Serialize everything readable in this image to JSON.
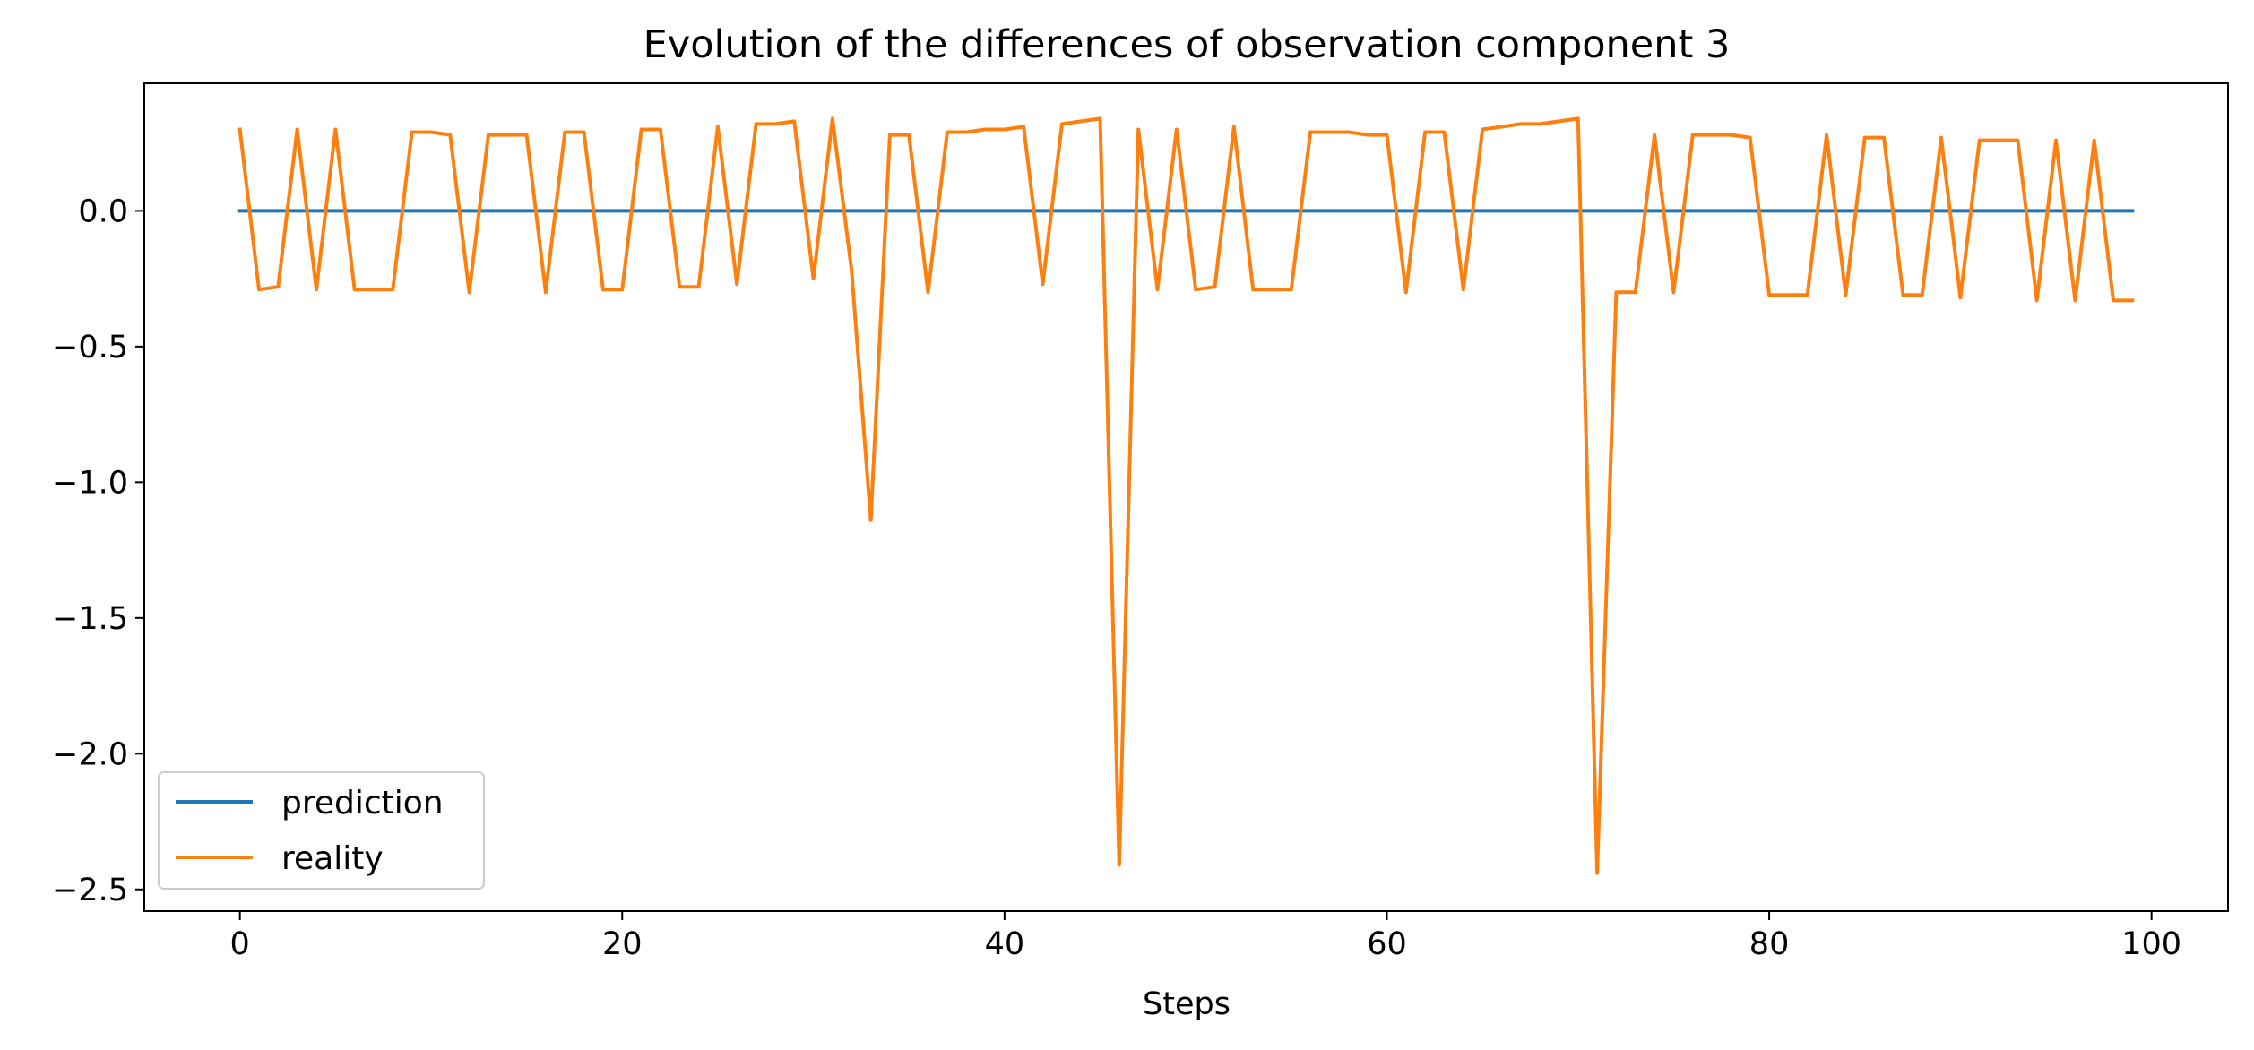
{
  "chart_data": {
    "type": "line",
    "title": "Evolution of the differences of observation component 3",
    "xlabel": "Steps",
    "ylabel": "",
    "xlim": [
      -5,
      104
    ],
    "ylim": [
      -2.58,
      0.47
    ],
    "xticks": [
      0,
      20,
      40,
      60,
      80,
      100
    ],
    "yticks": [
      0.0,
      -0.5,
      -1.0,
      -1.5,
      -2.0,
      -2.5
    ],
    "xtick_labels": [
      "0",
      "20",
      "40",
      "60",
      "80",
      "100"
    ],
    "ytick_labels": [
      "0.0",
      "−0.5",
      "−1.0",
      "−1.5",
      "−2.0",
      "−2.5"
    ],
    "grid": false,
    "legend_position": "lower-left",
    "x": [
      0,
      1,
      2,
      3,
      4,
      5,
      6,
      7,
      8,
      9,
      10,
      11,
      12,
      13,
      14,
      15,
      16,
      17,
      18,
      19,
      20,
      21,
      22,
      23,
      24,
      25,
      26,
      27,
      28,
      29,
      30,
      31,
      32,
      33,
      34,
      35,
      36,
      37,
      38,
      39,
      40,
      41,
      42,
      43,
      44,
      45,
      46,
      47,
      48,
      49,
      50,
      51,
      52,
      53,
      54,
      55,
      56,
      57,
      58,
      59,
      60,
      61,
      62,
      63,
      64,
      65,
      66,
      67,
      68,
      69,
      70,
      71,
      72,
      73,
      74,
      75,
      76,
      77,
      78,
      79,
      80,
      81,
      82,
      83,
      84,
      85,
      86,
      87,
      88,
      89,
      90,
      91,
      92,
      93,
      94,
      95,
      96,
      97,
      98,
      99
    ],
    "series": [
      {
        "name": "prediction",
        "color": "#1f77b4",
        "values": [
          0,
          0,
          0,
          0,
          0,
          0,
          0,
          0,
          0,
          0,
          0,
          0,
          0,
          0,
          0,
          0,
          0,
          0,
          0,
          0,
          0,
          0,
          0,
          0,
          0,
          0,
          0,
          0,
          0,
          0,
          0,
          0,
          0,
          0,
          0,
          0,
          0,
          0,
          0,
          0,
          0,
          0,
          0,
          0,
          0,
          0,
          0,
          0,
          0,
          0,
          0,
          0,
          0,
          0,
          0,
          0,
          0,
          0,
          0,
          0,
          0,
          0,
          0,
          0,
          0,
          0,
          0,
          0,
          0,
          0,
          0,
          0,
          0,
          0,
          0,
          0,
          0,
          0,
          0,
          0,
          0,
          0,
          0,
          0,
          0,
          0,
          0,
          0,
          0,
          0,
          0,
          0,
          0,
          0,
          0,
          0,
          0,
          0,
          0,
          0
        ]
      },
      {
        "name": "reality",
        "color": "#ff7f0e",
        "values": [
          0.3,
          -0.29,
          -0.28,
          0.3,
          -0.29,
          0.3,
          -0.29,
          -0.29,
          -0.29,
          0.29,
          0.29,
          0.28,
          -0.3,
          0.28,
          0.28,
          0.28,
          -0.3,
          0.29,
          0.29,
          -0.29,
          -0.29,
          0.3,
          0.3,
          -0.28,
          -0.28,
          0.31,
          -0.27,
          0.32,
          0.32,
          0.33,
          -0.25,
          0.34,
          -0.22,
          -1.14,
          0.28,
          0.28,
          -0.3,
          0.29,
          0.29,
          0.3,
          0.3,
          0.31,
          -0.27,
          0.32,
          0.33,
          0.34,
          -2.41,
          0.3,
          -0.29,
          0.3,
          -0.29,
          -0.28,
          0.31,
          -0.29,
          -0.29,
          -0.29,
          0.29,
          0.29,
          0.29,
          0.28,
          0.28,
          -0.3,
          0.29,
          0.29,
          -0.29,
          0.3,
          0.31,
          0.32,
          0.32,
          0.33,
          0.34,
          -2.44,
          -0.3,
          -0.3,
          0.28,
          -0.3,
          0.28,
          0.28,
          0.28,
          0.27,
          -0.31,
          -0.31,
          -0.31,
          0.28,
          -0.31,
          0.27,
          0.27,
          -0.31,
          -0.31,
          0.27,
          -0.32,
          0.26,
          0.26,
          0.26,
          -0.33,
          0.26,
          -0.33,
          0.26,
          -0.33,
          -0.33
        ]
      }
    ]
  }
}
